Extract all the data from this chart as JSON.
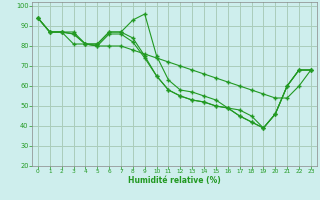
{
  "xlabel": "Humidité relative (%)",
  "background_color": "#ceeeed",
  "grid_color": "#aaccbb",
  "line_color": "#229922",
  "marker": "+",
  "xlim": [
    -0.5,
    23.5
  ],
  "ylim": [
    20,
    102
  ],
  "yticks": [
    20,
    30,
    40,
    50,
    60,
    70,
    80,
    90,
    100
  ],
  "xticks": [
    0,
    1,
    2,
    3,
    4,
    5,
    6,
    7,
    8,
    9,
    10,
    11,
    12,
    13,
    14,
    15,
    16,
    17,
    18,
    19,
    20,
    21,
    22,
    23
  ],
  "series": [
    [
      94,
      87,
      87,
      87,
      81,
      81,
      87,
      87,
      93,
      96,
      75,
      63,
      58,
      57,
      55,
      53,
      49,
      48,
      45,
      39,
      46,
      60,
      68,
      68
    ],
    [
      94,
      87,
      87,
      86,
      81,
      81,
      87,
      87,
      84,
      75,
      65,
      58,
      55,
      53,
      52,
      50,
      49,
      45,
      42,
      39,
      46,
      60,
      68,
      68
    ],
    [
      94,
      87,
      87,
      86,
      81,
      80,
      86,
      86,
      82,
      74,
      65,
      58,
      55,
      53,
      52,
      50,
      49,
      45,
      42,
      39,
      46,
      60,
      68,
      68
    ],
    [
      94,
      87,
      87,
      81,
      81,
      80,
      80,
      80,
      78,
      76,
      74,
      72,
      70,
      68,
      66,
      64,
      62,
      60,
      58,
      56,
      54,
      54,
      60,
      68
    ]
  ]
}
